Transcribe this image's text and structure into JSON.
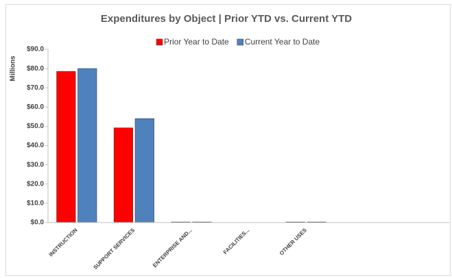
{
  "chart_data": {
    "type": "bar",
    "title": "Expenditures by Object | Prior YTD vs. Current YTD",
    "y_label": "Millions",
    "categories": [
      "INSTRUCTION",
      "SUPPORT SERVICES",
      "ENTERPRISE AND...",
      "FACILITIES...",
      "OTHER USES",
      null,
      null
    ],
    "series": [
      {
        "name": "Prior Year to Date",
        "color": "#ff0000",
        "values": [
          78.5,
          49.2,
          0.3,
          0,
          0.3,
          null,
          null
        ]
      },
      {
        "name": "Current Year to Date",
        "color": "#4f81bd",
        "values": [
          80.0,
          54.0,
          0.3,
          0,
          0.3,
          null,
          null
        ]
      }
    ],
    "ylim": [
      0,
      90
    ],
    "yticks": [
      {
        "value": 0,
        "label": "$0.0"
      },
      {
        "value": 10,
        "label": "$10.0"
      },
      {
        "value": 20,
        "label": "$20.0"
      },
      {
        "value": 30,
        "label": "$30.0"
      },
      {
        "value": 40,
        "label": "$40.0"
      },
      {
        "value": 50,
        "label": "$50.0"
      },
      {
        "value": 60,
        "label": "$60.0"
      },
      {
        "value": 70,
        "label": "$70.0"
      },
      {
        "value": 80,
        "label": "$80.0"
      },
      {
        "value": 90,
        "label": "$90.0"
      }
    ],
    "grid": false,
    "legend": "top"
  }
}
